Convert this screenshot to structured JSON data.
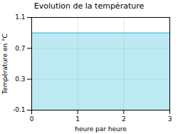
{
  "chart_data": {
    "type": "area",
    "title": "Evolution de la température",
    "xlabel": "heure par heure",
    "ylabel": "Température en °C",
    "x": [
      0,
      3
    ],
    "values": [
      0.9,
      0.9
    ],
    "color": "#5bc8df",
    "xlim": [
      0,
      3
    ],
    "ylim": [
      -0.1,
      1.1
    ],
    "xticks": [
      0,
      1,
      2,
      3
    ],
    "yticks": [
      -0.1,
      0.3,
      0.7,
      1.1
    ],
    "grid": true
  }
}
